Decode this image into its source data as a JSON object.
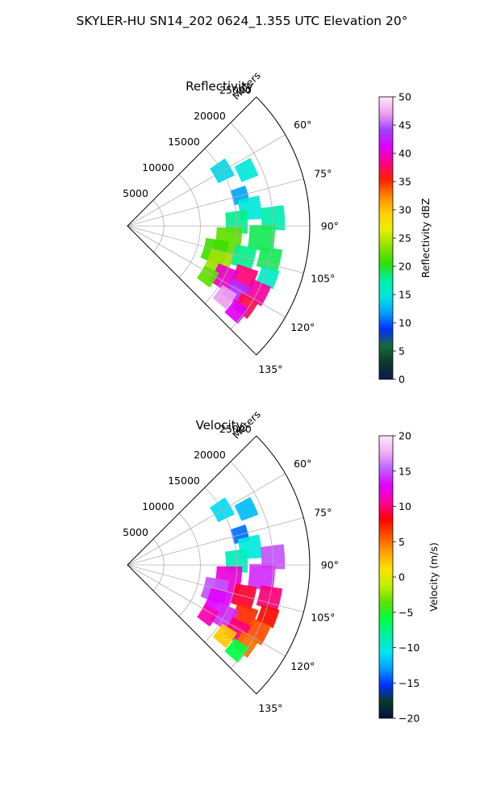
{
  "figure_title": "SKYLER-HU  SN14_202  0624_1.355 UTC Elevation 20°",
  "chart_data": [
    {
      "type": "polar-heatmap",
      "title": "Reflectivity",
      "range_label": "Meters",
      "range_ticks": [
        5000,
        10000,
        15000,
        20000,
        25000
      ],
      "rlim": [
        0,
        25000
      ],
      "azimuth_ticks": [
        "60°",
        "75°",
        "90°",
        "105°",
        "120°",
        "135°"
      ],
      "azimuth_range_deg": [
        45,
        135
      ],
      "grid": true,
      "colorbar": {
        "label": "Reflectivity dBZ",
        "ticks": [
          0,
          5,
          10,
          15,
          20,
          25,
          30,
          35,
          40,
          45,
          50
        ],
        "range": [
          0,
          50
        ]
      },
      "cells": [
        {
          "az": 60,
          "r": 15000,
          "value": 14,
          "size": 2500
        },
        {
          "az": 65,
          "r": 18000,
          "value": 15,
          "size": 2500
        },
        {
          "az": 75,
          "r": 16000,
          "value": 12,
          "size": 2200
        },
        {
          "az": 82,
          "r": 17000,
          "value": 15,
          "size": 3000
        },
        {
          "az": 87,
          "r": 20000,
          "value": 17,
          "size": 3200
        },
        {
          "az": 88,
          "r": 15000,
          "value": 18,
          "size": 3000
        },
        {
          "az": 95,
          "r": 18500,
          "value": 19,
          "size": 3500
        },
        {
          "az": 98,
          "r": 14000,
          "value": 22,
          "size": 3500
        },
        {
          "az": 103,
          "r": 20000,
          "value": 19,
          "size": 3000
        },
        {
          "az": 106,
          "r": 12500,
          "value": 21,
          "size": 3200
        },
        {
          "az": 105,
          "r": 16500,
          "value": 18,
          "size": 3000
        },
        {
          "az": 110,
          "r": 20500,
          "value": 16,
          "size": 2500
        },
        {
          "az": 112,
          "r": 13500,
          "value": 24,
          "size": 3200
        },
        {
          "az": 114,
          "r": 17500,
          "value": 38,
          "size": 3000
        },
        {
          "az": 117,
          "r": 20000,
          "value": 39,
          "size": 2800
        },
        {
          "az": 118,
          "r": 15000,
          "value": 40,
          "size": 3000
        },
        {
          "az": 121,
          "r": 17500,
          "value": 43,
          "size": 2800
        },
        {
          "az": 124,
          "r": 19500,
          "value": 37,
          "size": 2600
        },
        {
          "az": 126,
          "r": 16500,
          "value": 47,
          "size": 2400
        },
        {
          "az": 128,
          "r": 19000,
          "value": 41,
          "size": 2400
        },
        {
          "az": 122,
          "r": 13000,
          "value": 22,
          "size": 2200
        }
      ]
    },
    {
      "type": "polar-heatmap",
      "title": "Velocity",
      "range_label": "Meters",
      "range_ticks": [
        5000,
        10000,
        15000,
        20000,
        25000
      ],
      "rlim": [
        0,
        25000
      ],
      "azimuth_ticks": [
        "60°",
        "75°",
        "90°",
        "105°",
        "120°",
        "135°"
      ],
      "azimuth_range_deg": [
        45,
        135
      ],
      "grid": true,
      "colorbar": {
        "label": "Velocity (m/s)",
        "ticks": [
          -20,
          -15,
          -10,
          -5,
          0,
          5,
          10,
          15,
          20
        ],
        "range": [
          -20,
          20
        ]
      },
      "cells": [
        {
          "az": 60,
          "r": 15000,
          "value": -11,
          "size": 2500
        },
        {
          "az": 65,
          "r": 18000,
          "value": -12,
          "size": 2500
        },
        {
          "az": 75,
          "r": 16000,
          "value": -14,
          "size": 2200
        },
        {
          "az": 82,
          "r": 17000,
          "value": -10,
          "size": 3000
        },
        {
          "az": 87,
          "r": 20000,
          "value": 15,
          "size": 3200
        },
        {
          "az": 88,
          "r": 15000,
          "value": -9,
          "size": 3000
        },
        {
          "az": 95,
          "r": 18500,
          "value": 14,
          "size": 3500
        },
        {
          "az": 98,
          "r": 14000,
          "value": 12,
          "size": 3500
        },
        {
          "az": 103,
          "r": 20000,
          "value": 10,
          "size": 3000
        },
        {
          "az": 106,
          "r": 12500,
          "value": 15,
          "size": 3200
        },
        {
          "az": 105,
          "r": 16500,
          "value": 9,
          "size": 3000
        },
        {
          "az": 110,
          "r": 20500,
          "value": 8,
          "size": 2500
        },
        {
          "az": 112,
          "r": 13500,
          "value": 13,
          "size": 3200
        },
        {
          "az": 114,
          "r": 17500,
          "value": 7,
          "size": 3000
        },
        {
          "az": 117,
          "r": 20000,
          "value": 6,
          "size": 2800
        },
        {
          "az": 118,
          "r": 15000,
          "value": 14,
          "size": 3000
        },
        {
          "az": 121,
          "r": 17500,
          "value": 10,
          "size": 2800
        },
        {
          "az": 124,
          "r": 19500,
          "value": 5,
          "size": 2600
        },
        {
          "az": 126,
          "r": 16500,
          "value": 2,
          "size": 2400
        },
        {
          "az": 128,
          "r": 19000,
          "value": -6,
          "size": 2400
        },
        {
          "az": 122,
          "r": 13000,
          "value": 11,
          "size": 2200
        }
      ]
    }
  ],
  "colors": {
    "reflectivity_stops": [
      "#0a1a50",
      "#0a3a2a",
      "#1a6a3a",
      "#0030ff",
      "#00a0ff",
      "#00e8e0",
      "#00f0a0",
      "#30e000",
      "#90e000",
      "#e8f000",
      "#ffd000",
      "#ff8800",
      "#ff2000",
      "#ff0080",
      "#e000ff",
      "#a040ff",
      "#f0a0f0",
      "#ffe8ff"
    ],
    "velocity_stops": [
      "#051040",
      "#0a3a2a",
      "#0030ff",
      "#00a0ff",
      "#00e8f0",
      "#00f0a0",
      "#00ff40",
      "#60e000",
      "#c0f000",
      "#ffe000",
      "#ffa000",
      "#ff5000",
      "#ff0000",
      "#ff00a0",
      "#e000ff",
      "#c060ff",
      "#f0b0f0",
      "#ffe8ff"
    ]
  }
}
